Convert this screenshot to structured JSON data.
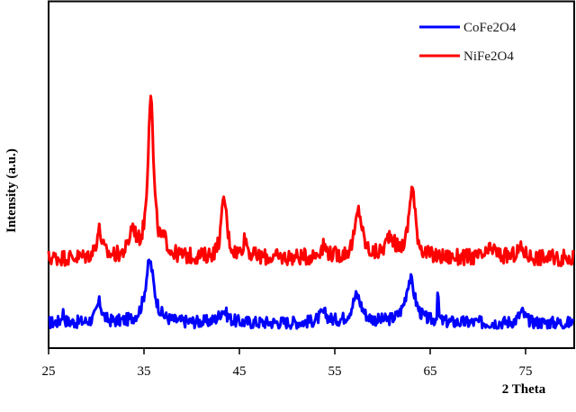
{
  "chart_data": {
    "type": "line",
    "title": "",
    "xlabel": "2 Theta",
    "ylabel": "Intensity (a.u.)",
    "xlim": [
      25,
      80
    ],
    "ylim": [
      0,
      386
    ],
    "xticks": [
      25,
      35,
      45,
      55,
      65,
      75
    ],
    "yticks": [],
    "grid": false,
    "legend_position": "upper right",
    "series": [
      {
        "name": "CoFe2O4",
        "color": "#0000ff",
        "baseline": 28,
        "noise": 7,
        "peaks": [
          {
            "x": 26.5,
            "height": 12,
            "width": 0.15
          },
          {
            "x": 30.3,
            "height": 22,
            "width": 0.35
          },
          {
            "x": 35.6,
            "height": 68,
            "width": 0.55
          },
          {
            "x": 43.3,
            "height": 14,
            "width": 0.5
          },
          {
            "x": 53.8,
            "height": 10,
            "width": 0.5
          },
          {
            "x": 57.3,
            "height": 30,
            "width": 0.6
          },
          {
            "x": 62.9,
            "height": 48,
            "width": 0.6
          },
          {
            "x": 65.8,
            "height": 40,
            "width": 0.06
          },
          {
            "x": 74.6,
            "height": 12,
            "width": 0.4
          }
        ]
      },
      {
        "name": "NiFe2O4",
        "color": "#ff0000",
        "baseline": 100,
        "noise": 9,
        "peaks": [
          {
            "x": 30.3,
            "height": 30,
            "width": 0.35
          },
          {
            "x": 33.8,
            "height": 30,
            "width": 0.4
          },
          {
            "x": 35.7,
            "height": 182,
            "width": 0.35
          },
          {
            "x": 37.2,
            "height": 12,
            "width": 0.4
          },
          {
            "x": 43.4,
            "height": 66,
            "width": 0.35
          },
          {
            "x": 45.6,
            "height": 20,
            "width": 0.3
          },
          {
            "x": 53.8,
            "height": 12,
            "width": 0.5
          },
          {
            "x": 57.5,
            "height": 52,
            "width": 0.45
          },
          {
            "x": 60.8,
            "height": 24,
            "width": 0.5
          },
          {
            "x": 63.1,
            "height": 78,
            "width": 0.4
          },
          {
            "x": 71.5,
            "height": 10,
            "width": 0.5
          },
          {
            "x": 74.5,
            "height": 10,
            "width": 0.5
          }
        ]
      }
    ]
  },
  "legend": {
    "items": [
      {
        "label": "CoFe2O4",
        "color": "#0000ff"
      },
      {
        "label": "NiFe2O4",
        "color": "#ff0000"
      }
    ]
  },
  "axes": {
    "x_title": "2 Theta",
    "y_title": "Intensity (a.u.)",
    "x_tick_labels": [
      "25",
      "35",
      "45",
      "55",
      "65",
      "75"
    ]
  }
}
